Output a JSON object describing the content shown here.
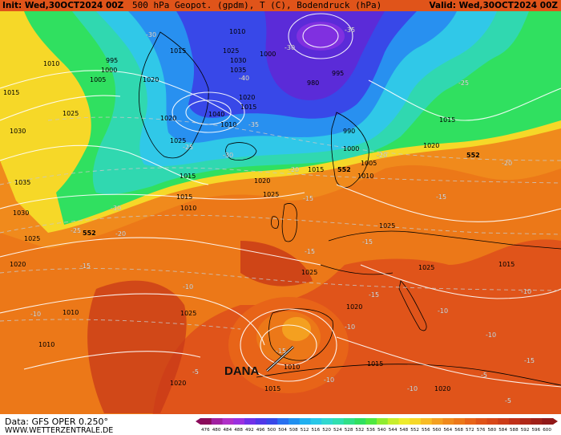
{
  "header": {
    "init": "Init: Wed,30OCT2024 00Z",
    "title": "500 hPa Geopot. (gpdm), T (C), Bodendruck (hPa)",
    "valid": "Valid: Wed,30OCT2024 00Z"
  },
  "footer": {
    "data_source": "Data: GFS OPER 0.250°",
    "website": "WWW.WETTERZENTRALE.DE"
  },
  "annotation": {
    "text": "DANA"
  },
  "colors": {
    "low_core": "#5b2bd8",
    "cold": "#2aa0e8",
    "cyan": "#33d0d8",
    "green": "#2ee05a",
    "yellow": "#f2e82c",
    "orange": "#f08a1c",
    "red_orange": "#e0541a",
    "deep_red": "#c83818",
    "coast": "#000000",
    "isobar": "#ffffff"
  },
  "scale": {
    "values": [
      "476",
      "480",
      "484",
      "488",
      "492",
      "496",
      "500",
      "504",
      "508",
      "512",
      "516",
      "520",
      "524",
      "528",
      "532",
      "536",
      "540",
      "544",
      "548",
      "552",
      "556",
      "560",
      "564",
      "568",
      "572",
      "576",
      "580",
      "584",
      "588",
      "592",
      "596",
      "600"
    ],
    "colors": [
      "#8a0a5a",
      "#a020a0",
      "#b030c8",
      "#9a30e0",
      "#7030e8",
      "#5038e8",
      "#3848e8",
      "#2870f0",
      "#2090f0",
      "#20b0f0",
      "#28c8e8",
      "#30d8d0",
      "#30e0b0",
      "#30e088",
      "#30e060",
      "#50e840",
      "#90ec30",
      "#c8ee2c",
      "#eeec2c",
      "#f6d828",
      "#f8bc24",
      "#f4a020",
      "#f08a1c",
      "#ec7818",
      "#e86418",
      "#e05418",
      "#d84818",
      "#cc3c18",
      "#c03018",
      "#b02818",
      "#a02018",
      "#901818"
    ]
  },
  "map_labels": {
    "isobars": [
      "1010",
      "995",
      "1000",
      "1005",
      "1020",
      "1015",
      "1025",
      "1030",
      "1035",
      "1040",
      "1020",
      "1015",
      "1010",
      "1000",
      "980",
      "995",
      "990",
      "1005",
      "1010",
      "1015",
      "1025",
      "1030",
      "1035",
      "1010",
      "1015",
      "1020",
      "1025",
      "1015",
      "1020",
      "1025",
      "1010",
      "1025",
      "1015",
      "1025",
      "1020",
      "1015",
      "1020",
      "1010",
      "1015",
      "1020",
      "1025",
      "1010",
      "1015",
      "1015",
      "1020",
      "1020",
      "1010",
      "1030",
      "020",
      "1015",
      "1010"
    ],
    "temps": [
      "-30",
      "-35",
      "-30",
      "-40",
      "-35",
      "-30",
      "-25",
      "-25",
      "-20",
      "-30",
      "-20",
      "-25",
      "-15",
      "-15",
      "-15",
      "-10",
      "-10",
      "-15",
      "-20",
      "-15",
      "-10",
      "-10",
      "-15",
      "-10",
      "-5",
      "-15",
      "-10",
      "-5",
      "-15",
      "-10",
      "-5",
      "-10",
      "-20"
    ],
    "heights": [
      "552",
      "552",
      "552"
    ]
  }
}
